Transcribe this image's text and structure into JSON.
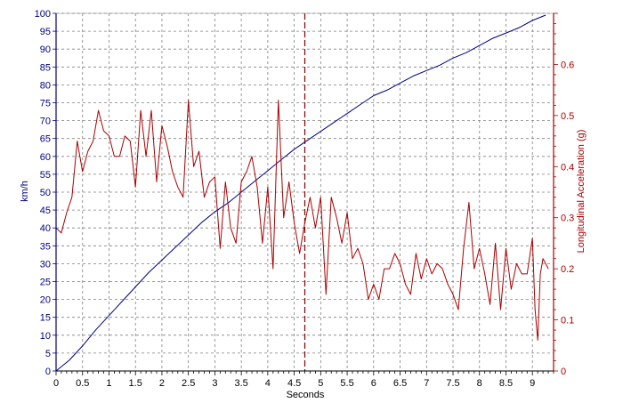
{
  "chart_data": {
    "type": "line",
    "title": "",
    "xlabel": "Seconds",
    "ylabel_left": "km/h",
    "ylabel_right": "Longitudinal Acceleration (g)",
    "xlim": [
      0,
      9.4
    ],
    "ylim_left": [
      0,
      100
    ],
    "ylim_right": [
      0,
      0.7
    ],
    "x_ticks": [
      "0",
      "0.5",
      "1",
      "1.5",
      "2",
      "2.5",
      "3",
      "3.5",
      "4",
      "4.5",
      "5",
      "5.5",
      "6",
      "6.5",
      "7",
      "7.5",
      "8",
      "8.5",
      "9"
    ],
    "y_left_ticks": [
      "0",
      "5",
      "10",
      "15",
      "20",
      "25",
      "30",
      "35",
      "40",
      "45",
      "50",
      "55",
      "60",
      "65",
      "70",
      "75",
      "80",
      "85",
      "90",
      "95",
      "100"
    ],
    "y_right_ticks": [
      "0",
      "0.1",
      "0.2",
      "0.3",
      "0.4",
      "0.5",
      "0.6"
    ],
    "grid": true,
    "marker_x": 4.7,
    "colors": {
      "speed": "#000080",
      "accel": "#aa0000",
      "left_axis": "#000080",
      "right_axis": "#aa0000",
      "grid": "#808080",
      "marker": "#800000"
    },
    "series": [
      {
        "axis": "left",
        "x": [
          0,
          0.25,
          0.5,
          0.75,
          1,
          1.25,
          1.5,
          1.75,
          2,
          2.25,
          2.5,
          2.75,
          3,
          3.25,
          3.5,
          3.75,
          4,
          4.25,
          4.5,
          4.75,
          5,
          5.25,
          5.5,
          5.75,
          6,
          6.25,
          6.5,
          6.75,
          7,
          7.25,
          7.5,
          7.75,
          8,
          8.25,
          8.5,
          8.75,
          9,
          9.25
        ],
        "values": [
          0,
          3,
          7,
          11.5,
          15.5,
          19.5,
          23.5,
          27.5,
          31,
          34.5,
          38,
          41.5,
          44.5,
          47,
          50,
          53,
          56,
          59,
          62,
          64.5,
          67,
          69.5,
          72,
          74.5,
          77,
          78.5,
          80.5,
          82.5,
          84,
          85.5,
          87.5,
          89,
          91,
          93,
          94.5,
          96,
          98,
          99.5
        ]
      },
      {
        "axis": "right",
        "x": [
          0,
          0.1,
          0.2,
          0.3,
          0.4,
          0.5,
          0.6,
          0.7,
          0.8,
          0.9,
          1,
          1.1,
          1.2,
          1.3,
          1.4,
          1.5,
          1.6,
          1.7,
          1.8,
          1.9,
          2,
          2.1,
          2.2,
          2.3,
          2.4,
          2.5,
          2.6,
          2.7,
          2.8,
          2.9,
          3,
          3.1,
          3.2,
          3.3,
          3.4,
          3.5,
          3.6,
          3.7,
          3.8,
          3.9,
          4,
          4.1,
          4.2,
          4.3,
          4.4,
          4.5,
          4.6,
          4.7,
          4.8,
          4.9,
          5,
          5.1,
          5.2,
          5.3,
          5.4,
          5.5,
          5.6,
          5.7,
          5.8,
          5.9,
          6,
          6.1,
          6.2,
          6.3,
          6.4,
          6.5,
          6.6,
          6.7,
          6.8,
          6.9,
          7,
          7.1,
          7.2,
          7.3,
          7.4,
          7.5,
          7.6,
          7.7,
          7.8,
          7.9,
          8,
          8.1,
          8.2,
          8.3,
          8.4,
          8.5,
          8.6,
          8.7,
          8.8,
          8.9,
          9,
          9.05,
          9.1,
          9.15,
          9.2,
          9.3
        ],
        "values": [
          0.28,
          0.27,
          0.31,
          0.34,
          0.45,
          0.39,
          0.43,
          0.45,
          0.51,
          0.47,
          0.46,
          0.42,
          0.42,
          0.46,
          0.45,
          0.36,
          0.51,
          0.42,
          0.51,
          0.37,
          0.48,
          0.44,
          0.39,
          0.36,
          0.34,
          0.53,
          0.4,
          0.43,
          0.34,
          0.37,
          0.38,
          0.24,
          0.37,
          0.28,
          0.25,
          0.37,
          0.39,
          0.42,
          0.36,
          0.25,
          0.36,
          0.2,
          0.53,
          0.3,
          0.37,
          0.29,
          0.23,
          0.29,
          0.34,
          0.28,
          0.34,
          0.15,
          0.34,
          0.3,
          0.25,
          0.31,
          0.22,
          0.24,
          0.21,
          0.14,
          0.17,
          0.14,
          0.2,
          0.2,
          0.23,
          0.21,
          0.17,
          0.15,
          0.23,
          0.18,
          0.22,
          0.19,
          0.21,
          0.2,
          0.17,
          0.15,
          0.12,
          0.24,
          0.33,
          0.2,
          0.24,
          0.19,
          0.13,
          0.25,
          0.12,
          0.24,
          0.16,
          0.21,
          0.19,
          0.19,
          0.26,
          0.12,
          0.06,
          0.19,
          0.22,
          0.2
        ]
      }
    ]
  }
}
